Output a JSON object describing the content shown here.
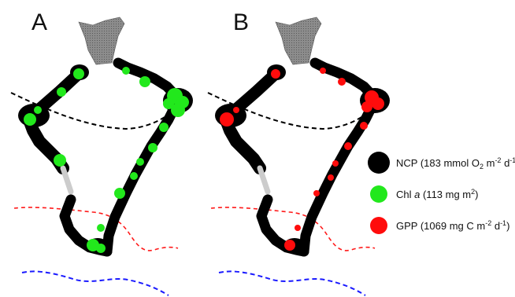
{
  "panels": [
    {
      "label": "A",
      "overlay": "chl_a"
    },
    {
      "label": "B",
      "overlay": "gpp"
    }
  ],
  "legend": [
    {
      "key": "ncp",
      "color": "#000000",
      "prefix": "NCP (183 mmol O",
      "sub": "2",
      "mid": " m",
      "sup": "-2",
      "mid2": " d",
      "sup2": "-1",
      "suffix": ")"
    },
    {
      "key": "chl_a",
      "color": "#22e81c",
      "prefix": "Chl ",
      "italic": "a",
      "mid": " (113 mg m",
      "sup": "2",
      "suffix": ")"
    },
    {
      "key": "gpp",
      "color": "#ff0c0c",
      "prefix": "GPP (1069 mg C m",
      "sup": "-2",
      "mid": " d",
      "sup2": "-1",
      "suffix": ")"
    }
  ],
  "line_colors": {
    "black_front": "#000000",
    "red_front": "#ff1a1a",
    "blue_front": "#1a1aff",
    "land": "#888888"
  }
}
